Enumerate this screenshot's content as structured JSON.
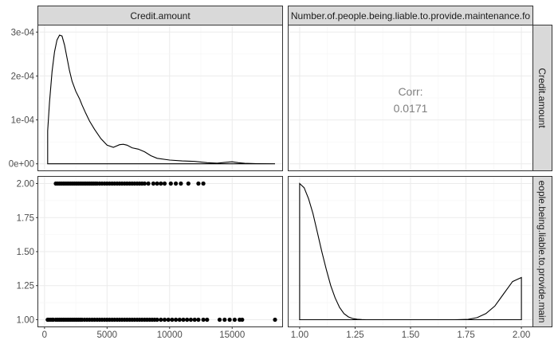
{
  "chart_data": {
    "type": "scatter",
    "variables": [
      "Credit.amount",
      "Number.of.people.being.liable.to.provide.maintenance.for"
    ],
    "strip_labels": {
      "top_col1": "Credit.amount",
      "top_col2": "Number.of.people.being.liable.to.provide.maintenance.fo",
      "right_row1": "Credit.amount",
      "right_row2": "eople.being.liable.to.provide.main"
    },
    "correlation": {
      "label": "Corr:",
      "value": "0.0171"
    },
    "x_axes": {
      "col1": {
        "range": [
          -500,
          19000
        ],
        "ticks": [
          0,
          5000,
          10000,
          15000
        ],
        "tick_labels": [
          "0",
          "5000",
          "10000",
          "15000"
        ]
      },
      "col2": {
        "range": [
          0.95,
          2.05
        ],
        "ticks": [
          1.0,
          1.25,
          1.5,
          1.75,
          2.0
        ],
        "tick_labels": [
          "1.00",
          "1.25",
          "1.50",
          "1.75",
          "2.00"
        ]
      }
    },
    "y_axes": {
      "row1": {
        "range": [
          -1.5e-05,
          0.000315
        ],
        "ticks": [
          0,
          0.0001,
          0.0002,
          0.0003
        ],
        "tick_labels": [
          "0e+00",
          "1e-04",
          "2e-04",
          "3e-04"
        ]
      },
      "row2": {
        "range": [
          0.95,
          2.05
        ],
        "ticks": [
          1.0,
          1.25,
          1.5,
          1.75,
          2.0
        ],
        "tick_labels": [
          "1.00",
          "1.25",
          "1.50",
          "1.75",
          "2.00"
        ]
      }
    },
    "density_credit_amount": {
      "x": [
        250,
        400,
        600,
        800,
        1000,
        1200,
        1400,
        1600,
        1800,
        2000,
        2200,
        2500,
        2800,
        3000,
        3300,
        3600,
        4000,
        4500,
        5000,
        5500,
        6000,
        6300,
        6600,
        7000,
        7500,
        8000,
        8500,
        9000,
        10000,
        11000,
        12000,
        13000,
        13800,
        14500,
        15000,
        15500,
        16000,
        17000,
        18424
      ],
      "y": [
        7.5e-05,
        0.00014,
        0.00021,
        0.000255,
        0.000282,
        0.000293,
        0.000291,
        0.00027,
        0.000241,
        0.000212,
        0.000188,
        0.000165,
        0.000148,
        0.000134,
        0.000115,
        9.75e-05,
        7.85e-05,
        5.75e-05,
        4.25e-05,
        3.75e-05,
        4.35e-05,
        4.45e-05,
        4.25e-05,
        3.65e-05,
        3.35e-05,
        2.75e-05,
        1.85e-05,
        1.25e-05,
        8.5e-06,
        6.5e-06,
        5.5e-06,
        2.5e-06,
        1.5e-06,
        3.5e-06,
        4.5e-06,
        2.5e-06,
        1.2e-06,
        4e-07,
        1e-07
      ]
    },
    "density_people_liable": {
      "x": [
        1.0,
        1.02,
        1.04,
        1.06,
        1.08,
        1.1,
        1.12,
        1.14,
        1.16,
        1.18,
        1.2,
        1.22,
        1.24,
        1.26,
        1.28,
        1.3,
        1.4,
        1.5,
        1.6,
        1.7,
        1.76,
        1.8,
        1.84,
        1.88,
        1.92,
        1.96,
        2.0
      ],
      "y": [
        1.0,
        0.97,
        0.89,
        0.78,
        0.64,
        0.5,
        0.37,
        0.25,
        0.16,
        0.09,
        0.045,
        0.02,
        0.008,
        0.003,
        0.001,
        0.0,
        0.0,
        0.0,
        0.0,
        0.0,
        0.002,
        0.015,
        0.045,
        0.1,
        0.19,
        0.28,
        0.31
      ]
    },
    "scatter": {
      "y_values": [
        1,
        2
      ],
      "x_group_y1": [
        250,
        300,
        450,
        600,
        700,
        900,
        1050,
        1200,
        1350,
        1500,
        1650,
        1800,
        1950,
        2100,
        2250,
        2400,
        2550,
        2700,
        2850,
        3000,
        3200,
        3400,
        3600,
        3800,
        4000,
        4200,
        4400,
        4600,
        4800,
        5000,
        5200,
        5400,
        5600,
        5800,
        6000,
        6200,
        6400,
        6600,
        6800,
        7000,
        7200,
        7400,
        7600,
        7800,
        8000,
        8200,
        8400,
        8600,
        8800,
        9000,
        9300,
        9600,
        9900,
        10200,
        10500,
        10800,
        11100,
        11400,
        11700,
        12000,
        12300,
        12700,
        13000,
        14000,
        14400,
        14800,
        15200,
        15600,
        15800,
        18424
      ],
      "x_group_y2": [
        900,
        1050,
        1200,
        1350,
        1500,
        1650,
        1800,
        1950,
        2100,
        2250,
        2400,
        2550,
        2700,
        2850,
        3000,
        3150,
        3300,
        3450,
        3600,
        3750,
        3900,
        4050,
        4200,
        4400,
        4600,
        4800,
        5000,
        5200,
        5400,
        5600,
        5800,
        6000,
        6200,
        6400,
        6600,
        6800,
        7000,
        7200,
        7400,
        7600,
        7800,
        8000,
        8300,
        8700,
        9000,
        9300,
        9600,
        10100,
        10500,
        10900,
        11500,
        12300,
        12700
      ]
    }
  }
}
